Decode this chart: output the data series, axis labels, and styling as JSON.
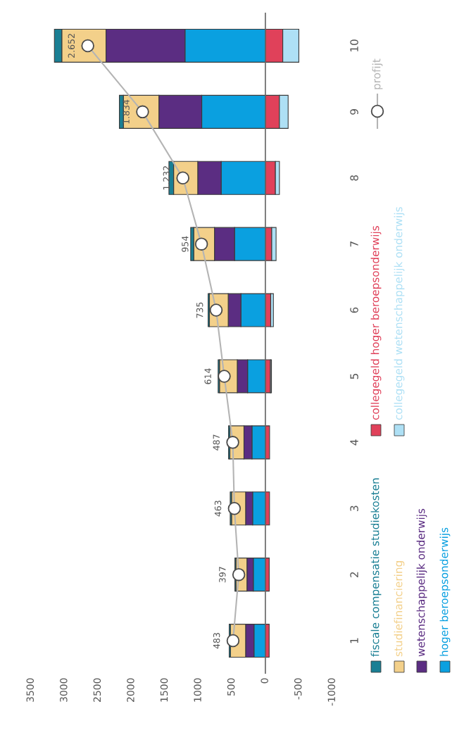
{
  "chart_data": {
    "type": "bar",
    "orientation": "horizontal",
    "stacked": true,
    "categories": [
      "10",
      "9",
      "8",
      "7",
      "6",
      "5",
      "4",
      "3",
      "2",
      "1"
    ],
    "series": [
      {
        "name": "hoger beroepsonderwijs",
        "color": "#0aa0e0",
        "values": [
          1200,
          950,
          660,
          460,
          365,
          265,
          200,
          190,
          180,
          170
        ]
      },
      {
        "name": "wetenschappelijk onderwijs",
        "color": "#5b2d82",
        "values": [
          1180,
          640,
          350,
          300,
          190,
          155,
          120,
          105,
          95,
          125
        ]
      },
      {
        "name": "studiefinanciering",
        "color": "#f3d08a",
        "values": [
          660,
          530,
          360,
          310,
          280,
          265,
          210,
          210,
          165,
          225
        ]
      },
      {
        "name": "fiscale compensatie studiekosten",
        "color": "#1a7f94",
        "values": [
          110,
          60,
          70,
          45,
          20,
          20,
          20,
          20,
          15,
          20
        ]
      },
      {
        "name": "collegegeld hoger beroepsonderwijs",
        "color": "#e0415a",
        "values": [
          -260,
          -210,
          -150,
          -95,
          -80,
          -76,
          -63,
          -62,
          -58,
          -57
        ]
      },
      {
        "name": "collegegeld wetenschappelijk onderwijs",
        "color": "#aee0f5",
        "values": [
          -240,
          -130,
          -60,
          -65,
          -40,
          -15,
          null,
          null,
          null,
          null
        ]
      },
      {
        "name": "profijt",
        "type": "line",
        "color": "#b4b4b4",
        "marker": "circle",
        "values": [
          2652,
          1834,
          1232,
          954,
          735,
          614,
          487,
          463,
          397,
          483
        ],
        "value_labels": [
          "2.652",
          "1.834",
          "1.232",
          "954",
          "735",
          "614",
          "487",
          "463",
          "397",
          "483"
        ]
      }
    ],
    "xlim": [
      3500,
      -1000
    ],
    "xticks": [
      3500,
      3000,
      2500,
      2000,
      1500,
      1000,
      500,
      0,
      -500,
      -1000
    ],
    "ref_lines": [
      {
        "axis": "x",
        "value": 0,
        "color": "#666666"
      }
    ],
    "grid": false,
    "legend": "bottom right"
  }
}
